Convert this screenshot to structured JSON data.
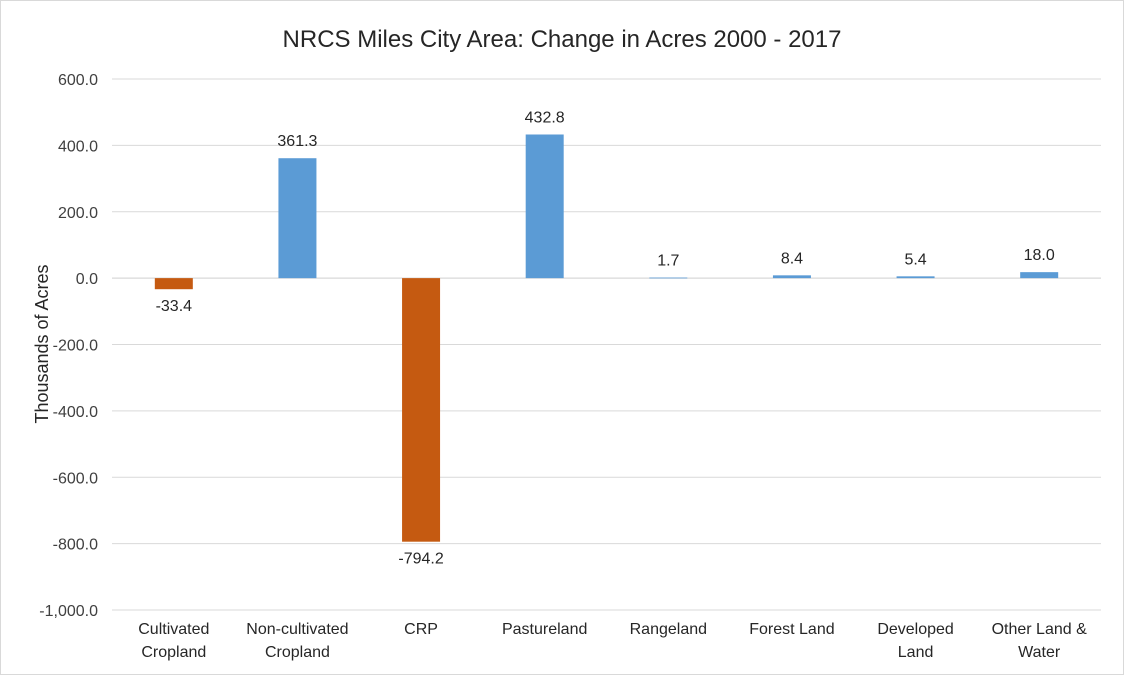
{
  "chart_data": {
    "type": "bar",
    "title": "NRCS Miles City Area: Change in Acres 2000 - 2017",
    "xlabel": "",
    "ylabel": "Thousands of Acres",
    "ylim": [
      -1000,
      600
    ],
    "yticks": [
      600,
      400,
      200,
      0,
      -200,
      -400,
      -600,
      -800,
      -1000
    ],
    "ytick_labels": [
      "600.0",
      "400.0",
      "200.0",
      "0.0",
      "-200.0",
      "-400.0",
      "-600.0",
      "-800.0",
      "-1,000.0"
    ],
    "grid": true,
    "legend": "none",
    "categories": [
      [
        "Cultivated",
        "Cropland"
      ],
      [
        "Non-cultivated",
        "Cropland"
      ],
      [
        "CRP"
      ],
      [
        "Pastureland"
      ],
      [
        "Rangeland"
      ],
      [
        "Forest Land"
      ],
      [
        "Developed",
        "Land"
      ],
      [
        "Other Land &",
        "Water"
      ]
    ],
    "values": [
      -33.4,
      361.3,
      -794.2,
      432.8,
      1.7,
      8.4,
      5.4,
      18.0
    ],
    "data_labels": [
      "-33.4",
      "361.3",
      "-794.2",
      "432.8",
      "1.7",
      "8.4",
      "5.4",
      "18.0"
    ],
    "colors": {
      "positive": "#5b9bd5",
      "negative": "#c55a11"
    }
  }
}
